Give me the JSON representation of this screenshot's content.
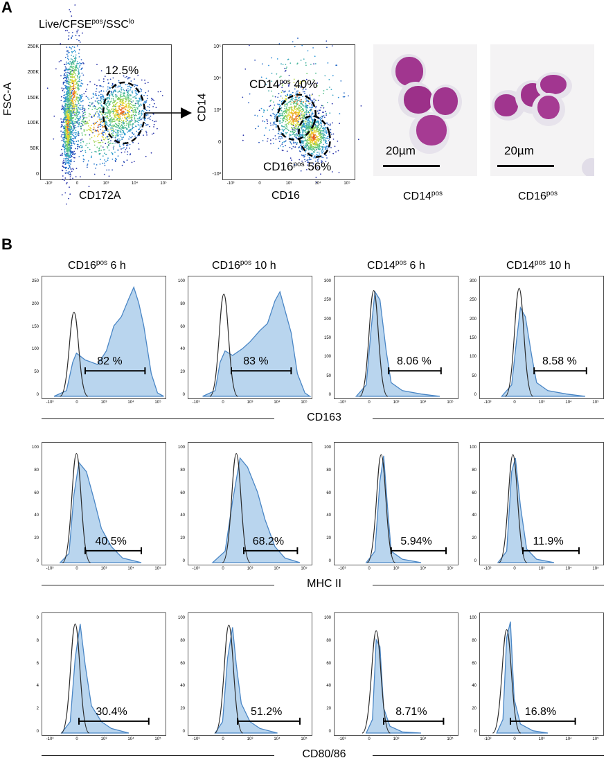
{
  "panel_a": {
    "letter": "A",
    "gate_title": {
      "pre": "Live/CFSE",
      "sup1": "pos",
      "mid": "/SSC",
      "sup2": "lo"
    },
    "plot1": {
      "ylabel": "FSC-A",
      "xlabel": "CD172A",
      "gate_percent": "12.5%",
      "yticks": [
        "250K",
        "200K",
        "150K",
        "100K",
        "50K",
        "0"
      ],
      "xticks": [
        "-10³",
        "0",
        "10³",
        "10⁴",
        "10⁵"
      ]
    },
    "plot2": {
      "ylabel": "CD14",
      "xlabel": "CD16",
      "gate_top": {
        "name": "CD14",
        "sup": "pos",
        "value": "40%"
      },
      "gate_bottom": {
        "name": "CD16",
        "sup": "pos",
        "value": "56%"
      },
      "yticks": [
        "10⁵",
        "10⁴",
        "10³",
        "0",
        "-10³"
      ],
      "xticks": [
        "-10³",
        "0",
        "10³",
        "10⁴",
        "10⁵"
      ]
    },
    "micro": [
      {
        "scale": "20µm",
        "name": "CD14",
        "sup": "pos"
      },
      {
        "scale": "20µm",
        "name": "CD16",
        "sup": "pos"
      }
    ]
  },
  "panel_b": {
    "letter": "B",
    "columns": [
      {
        "name": "CD16",
        "sup": "pos",
        "time": "6 h"
      },
      {
        "name": "CD16",
        "sup": "pos",
        "time": "10 h"
      },
      {
        "name": "CD14",
        "sup": "pos",
        "time": "6 h"
      },
      {
        "name": "CD14",
        "sup": "pos",
        "time": "10 h"
      }
    ],
    "rows": [
      {
        "marker": "CD163",
        "yticks": [
          [
            "250",
            "200",
            "150",
            "100",
            "50",
            "0"
          ],
          [
            "100",
            "80",
            "60",
            "40",
            "20",
            "0"
          ],
          [
            "300",
            "250",
            "200",
            "150",
            "100",
            "50",
            "0"
          ],
          [
            "300",
            "250",
            "200",
            "150",
            "100",
            "50",
            "0"
          ]
        ],
        "percents": [
          "82 %",
          "83 %",
          "8.06 %",
          "8.58 %"
        ]
      },
      {
        "marker": "MHC II",
        "yticks": [
          [
            "100",
            "80",
            "60",
            "40",
            "20",
            "0"
          ],
          [
            "100",
            "80",
            "60",
            "40",
            "20",
            "0"
          ],
          [
            "100",
            "80",
            "60",
            "40",
            "20",
            "0"
          ],
          [
            "100",
            "80",
            "60",
            "40",
            "20",
            "0"
          ]
        ],
        "percents": [
          "40.5%",
          "68.2%",
          "5.94%",
          "11.9%"
        ]
      },
      {
        "marker": "CD80/86",
        "yticks": [
          [
            "0",
            "8",
            "6",
            "4",
            "2",
            "0"
          ],
          [
            "100",
            "80",
            "60",
            "40",
            "20",
            "0"
          ],
          [
            "100",
            "80",
            "60",
            "40",
            "20",
            "0"
          ],
          [
            "100",
            "80",
            "60",
            "40",
            "20",
            "0"
          ]
        ],
        "percents": [
          "30.4%",
          "51.2%",
          "8.71%",
          "16.8%"
        ]
      }
    ],
    "xticks": [
      "-10³",
      "0",
      "10³",
      "10⁴",
      "10⁵"
    ]
  },
  "colors": {
    "fill": "#b9d5ee",
    "line": "#4a86c5",
    "control": "#2a2a2a"
  }
}
